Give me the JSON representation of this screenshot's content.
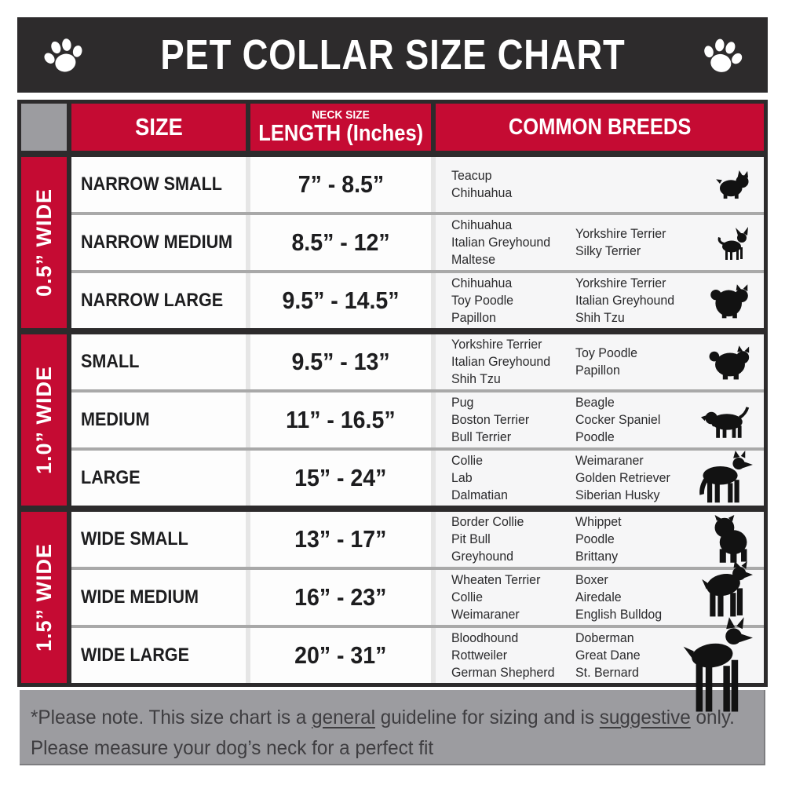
{
  "title": "PET COLLAR SIZE CHART",
  "columns": {
    "size": "SIZE",
    "neck_size_small": "NECK SIZE",
    "neck_size_large": "LENGTH (Inches)",
    "breeds": "COMMON BREEDS"
  },
  "groups": [
    {
      "width_label": "0.5” WIDE",
      "rows": [
        {
          "size": "NARROW SMALL",
          "length": "7” - 8.5”",
          "breeds_left": [
            "Teacup",
            "Chihuahua"
          ],
          "breeds_right": [],
          "icon": "yorkshire-terrier-silhouette"
        },
        {
          "size": "NARROW MEDIUM",
          "length": "8.5” - 12”",
          "breeds_left": [
            "Chihuahua",
            "Italian Greyhound",
            "Maltese"
          ],
          "breeds_right": [
            "Yorkshire Terrier",
            "Silky Terrier"
          ],
          "icon": "chihuahua-silhouette"
        },
        {
          "size": "NARROW LARGE",
          "length": "9.5” - 14.5”",
          "breeds_left": [
            "Chihuahua",
            "Toy Poodle",
            "Papillon"
          ],
          "breeds_right": [
            "Yorkshire Terrier",
            "Italian Greyhound",
            "Shih Tzu"
          ],
          "icon": "pomeranian-silhouette"
        }
      ]
    },
    {
      "width_label": "1.0” WIDE",
      "rows": [
        {
          "size": "SMALL",
          "length": "9.5” - 13”",
          "breeds_left": [
            "Yorkshire Terrier",
            "Italian Greyhound",
            "Shih Tzu"
          ],
          "breeds_right": [
            "Toy Poodle",
            "Papillon"
          ],
          "icon": "pekingese-silhouette"
        },
        {
          "size": "MEDIUM",
          "length": "11” - 16.5”",
          "breeds_left": [
            "Pug",
            "Boston Terrier",
            "Bull Terrier"
          ],
          "breeds_right": [
            "Beagle",
            "Cocker Spaniel",
            "Poodle"
          ],
          "icon": "puppy-silhouette"
        },
        {
          "size": "LARGE",
          "length": "15” - 24”",
          "breeds_left": [
            "Collie",
            "Lab",
            "Dalmatian"
          ],
          "breeds_right": [
            "Weimaraner",
            "Golden Retriever",
            "Siberian Husky"
          ],
          "icon": "german-shepherd-silhouette"
        }
      ]
    },
    {
      "width_label": "1.5” WIDE",
      "rows": [
        {
          "size": "WIDE SMALL",
          "length": "13” - 17”",
          "breeds_left": [
            "Border Collie",
            "Pit Bull",
            "Greyhound"
          ],
          "breeds_right": [
            "Whippet",
            "Poodle",
            "Brittany"
          ],
          "icon": "bulldog-silhouette"
        },
        {
          "size": "WIDE MEDIUM",
          "length": "16” - 23”",
          "breeds_left": [
            "Wheaten Terrier",
            "Collie",
            "Weimaraner"
          ],
          "breeds_right": [
            "Boxer",
            "Airedale",
            "English Bulldog"
          ],
          "icon": "boxer-silhouette"
        },
        {
          "size": "WIDE LARGE",
          "length": "20” - 31”",
          "breeds_left": [
            "Bloodhound",
            "Rottweiler",
            "German Shepherd"
          ],
          "breeds_right": [
            "Doberman",
            "Great Dane",
            "St. Bernard"
          ],
          "icon": "doberman-silhouette"
        }
      ]
    }
  ],
  "footer": {
    "line1_segments": [
      {
        "text": "*Please note. This size chart is a ",
        "underline": false
      },
      {
        "text": "general",
        "underline": true
      },
      {
        "text": " guideline for sizing and is ",
        "underline": false
      },
      {
        "text": "suggestive",
        "underline": true
      },
      {
        "text": " only.",
        "underline": false
      }
    ],
    "line2": "Please measure your dog’s neck for a perfect fit"
  },
  "icons": {
    "title_left": "paw-icon",
    "title_right": "paw-icon"
  },
  "colors": {
    "accent_red": "#c50b33",
    "header_black": "#2d2b2c",
    "panel_gray": "#9c9ca0",
    "row_divider_gray": "#a9a9a9",
    "cell_white": "#fdfdfd",
    "breeds_cell": "#f6f6f7"
  }
}
